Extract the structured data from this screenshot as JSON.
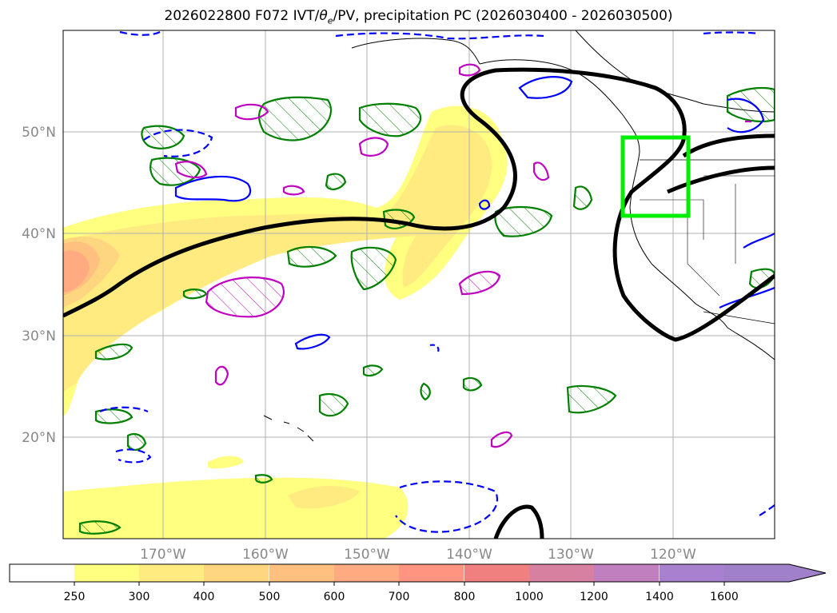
{
  "title": {
    "prefix": "2026022800 F072 IVT/",
    "theta": "θ",
    "sub": "e",
    "suffix": "/PV, precipitation PC (2026030400 - 2026030500)"
  },
  "map": {
    "lon_range": [
      -180,
      -110
    ],
    "lat_range": [
      10,
      60
    ],
    "lon_ticks": [
      {
        "value": -170,
        "label": "170°W"
      },
      {
        "value": -160,
        "label": "160°W"
      },
      {
        "value": -150,
        "label": "150°W"
      },
      {
        "value": -140,
        "label": "140°W"
      },
      {
        "value": -130,
        "label": "130°W"
      },
      {
        "value": -120,
        "label": "120°W"
      }
    ],
    "lat_ticks": [
      {
        "value": 50,
        "label": "50°N"
      },
      {
        "value": 40,
        "label": "40°N"
      },
      {
        "value": 30,
        "label": "30°N"
      },
      {
        "value": 20,
        "label": "20°N"
      }
    ],
    "region_box": {
      "lon_min": -125.2,
      "lon_max": -118.3,
      "lat_min": 41.6,
      "lat_max": 49.3,
      "color": "#00ee00"
    },
    "contour_colors": {
      "pv": "#000000",
      "theta_e": "#008000",
      "ivt_positive": "#0000ff",
      "precip": "#c000c0"
    }
  },
  "colorbar": {
    "levels": [
      "250",
      "300",
      "400",
      "500",
      "600",
      "700",
      "800",
      "1000",
      "1200",
      "1400",
      "1600"
    ],
    "colors": [
      "#ffff80",
      "#ffeb80",
      "#ffd680",
      "#ffc080",
      "#ffaa80",
      "#ff9480",
      "#f08080",
      "#d880a0",
      "#c080c0",
      "#a880d0"
    ],
    "extend_color": "#a080c8"
  }
}
